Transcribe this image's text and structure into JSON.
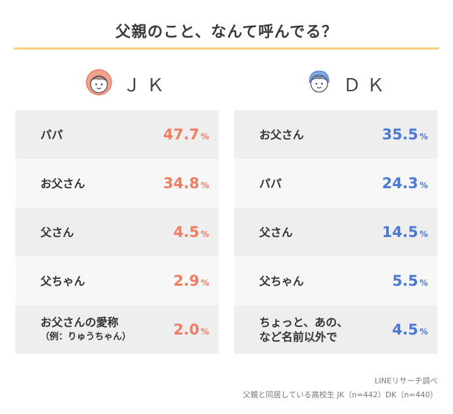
{
  "title": "父親のこと、なんて呼んでる？",
  "jk": {
    "label": "ＪＫ"
  },
  "dk": {
    "label": "ＤＫ"
  },
  "colors": {
    "jk": "#f07c62",
    "dk": "#4a78d4",
    "rule": "#f5d27a"
  },
  "pct_unit": "%",
  "chart_data": [
    {
      "type": "table",
      "series": [
        {
          "name": "ＪＫ",
          "values": [
            47.7,
            34.8,
            4.5,
            2.9,
            2.0
          ]
        }
      ],
      "categories": [
        "パパ",
        "お父さん",
        "父さん",
        "父ちゃん",
        "お父さんの愛称（例：りゅうちゃん）"
      ],
      "rows": [
        {
          "label": "パパ",
          "sub": "",
          "value": "47.7"
        },
        {
          "label": "お父さん",
          "sub": "",
          "value": "34.8"
        },
        {
          "label": "父さん",
          "sub": "",
          "value": "4.5"
        },
        {
          "label": "父ちゃん",
          "sub": "",
          "value": "2.9"
        },
        {
          "label": "お父さんの愛称",
          "sub": "（例：りゅうちゃん）",
          "value": "2.0"
        }
      ]
    },
    {
      "type": "table",
      "series": [
        {
          "name": "ＤＫ",
          "values": [
            35.5,
            24.3,
            14.5,
            5.5,
            4.5
          ]
        }
      ],
      "categories": [
        "お父さん",
        "パパ",
        "父さん",
        "父ちゃん",
        "ちょっと、あの、など名前以外で"
      ],
      "rows": [
        {
          "label": "お父さん",
          "sub": "",
          "value": "35.5"
        },
        {
          "label": "パパ",
          "sub": "",
          "value": "24.3"
        },
        {
          "label": "父さん",
          "sub": "",
          "value": "14.5"
        },
        {
          "label": "父ちゃん",
          "sub": "",
          "value": "5.5"
        },
        {
          "label": "ちょっと、あの、",
          "sub": "など名前以外で",
          "value": "4.5"
        }
      ]
    }
  ],
  "source": {
    "line1": "LINEリサーチ調べ",
    "line2": "父親と同居している高校生 JK（n=442）DK（n=440）"
  }
}
